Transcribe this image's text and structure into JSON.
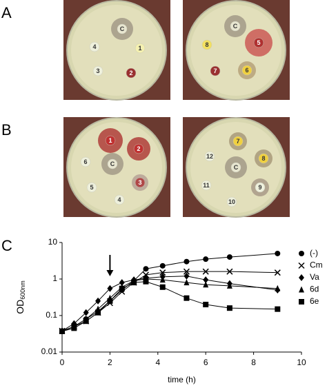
{
  "panels": [
    {
      "label": "A",
      "plates": [
        [
          "C",
          "4",
          "1",
          "3",
          "2"
        ],
        [
          "C",
          "8",
          "5",
          "7",
          "6"
        ]
      ]
    },
    {
      "label": "B",
      "plates": [
        [
          "1",
          "2",
          "6",
          "C",
          "3",
          "5",
          "4"
        ],
        [
          "7",
          "12",
          "8",
          "C",
          "11",
          "9",
          "10"
        ]
      ]
    }
  ],
  "chart_data": {
    "type": "line",
    "panel_label": "C",
    "x_label": "time (h)",
    "y_label": {
      "main": "OD",
      "sub": "600nm"
    },
    "log_y": true,
    "xlim": [
      0,
      10
    ],
    "xticks": [
      0,
      2,
      4,
      6,
      8,
      10
    ],
    "ylim": [
      0.01,
      10
    ],
    "yticks": [
      0.01,
      0.1,
      1,
      10
    ],
    "arrow_x": 2,
    "x": [
      0,
      0.5,
      1,
      1.5,
      2,
      2.5,
      3,
      3.5,
      4.2,
      5.2,
      6,
      7,
      9
    ],
    "series": [
      {
        "name": "(-)",
        "marker": "circle",
        "color": "#000000",
        "values": [
          0.037,
          0.05,
          0.08,
          0.13,
          0.25,
          0.5,
          0.9,
          1.9,
          2.3,
          3,
          3.5,
          4,
          5
        ]
      },
      {
        "name": "Cm",
        "marker": "cross",
        "color": "#000000",
        "values": [
          0.038,
          0.05,
          0.07,
          0.12,
          0.22,
          0.45,
          0.8,
          1.3,
          1.5,
          1.6,
          1.6,
          1.6,
          1.5
        ]
      },
      {
        "name": "Va",
        "marker": "diamond",
        "color": "#000000",
        "values": [
          0.038,
          0.06,
          0.12,
          0.25,
          0.55,
          0.8,
          0.95,
          1.05,
          1.15,
          1.2,
          0.95,
          0.75,
          0.5
        ]
      },
      {
        "name": "6d",
        "marker": "triangle",
        "color": "#000000",
        "values": [
          0.037,
          0.05,
          0.08,
          0.15,
          0.3,
          0.6,
          0.9,
          1.0,
          0.95,
          0.8,
          0.7,
          0.65,
          0.55
        ]
      },
      {
        "name": "6e",
        "marker": "square",
        "color": "#000000",
        "values": [
          0.037,
          0.045,
          0.07,
          0.12,
          0.25,
          0.55,
          0.8,
          0.85,
          0.6,
          0.3,
          0.2,
          0.16,
          0.15
        ]
      }
    ]
  }
}
